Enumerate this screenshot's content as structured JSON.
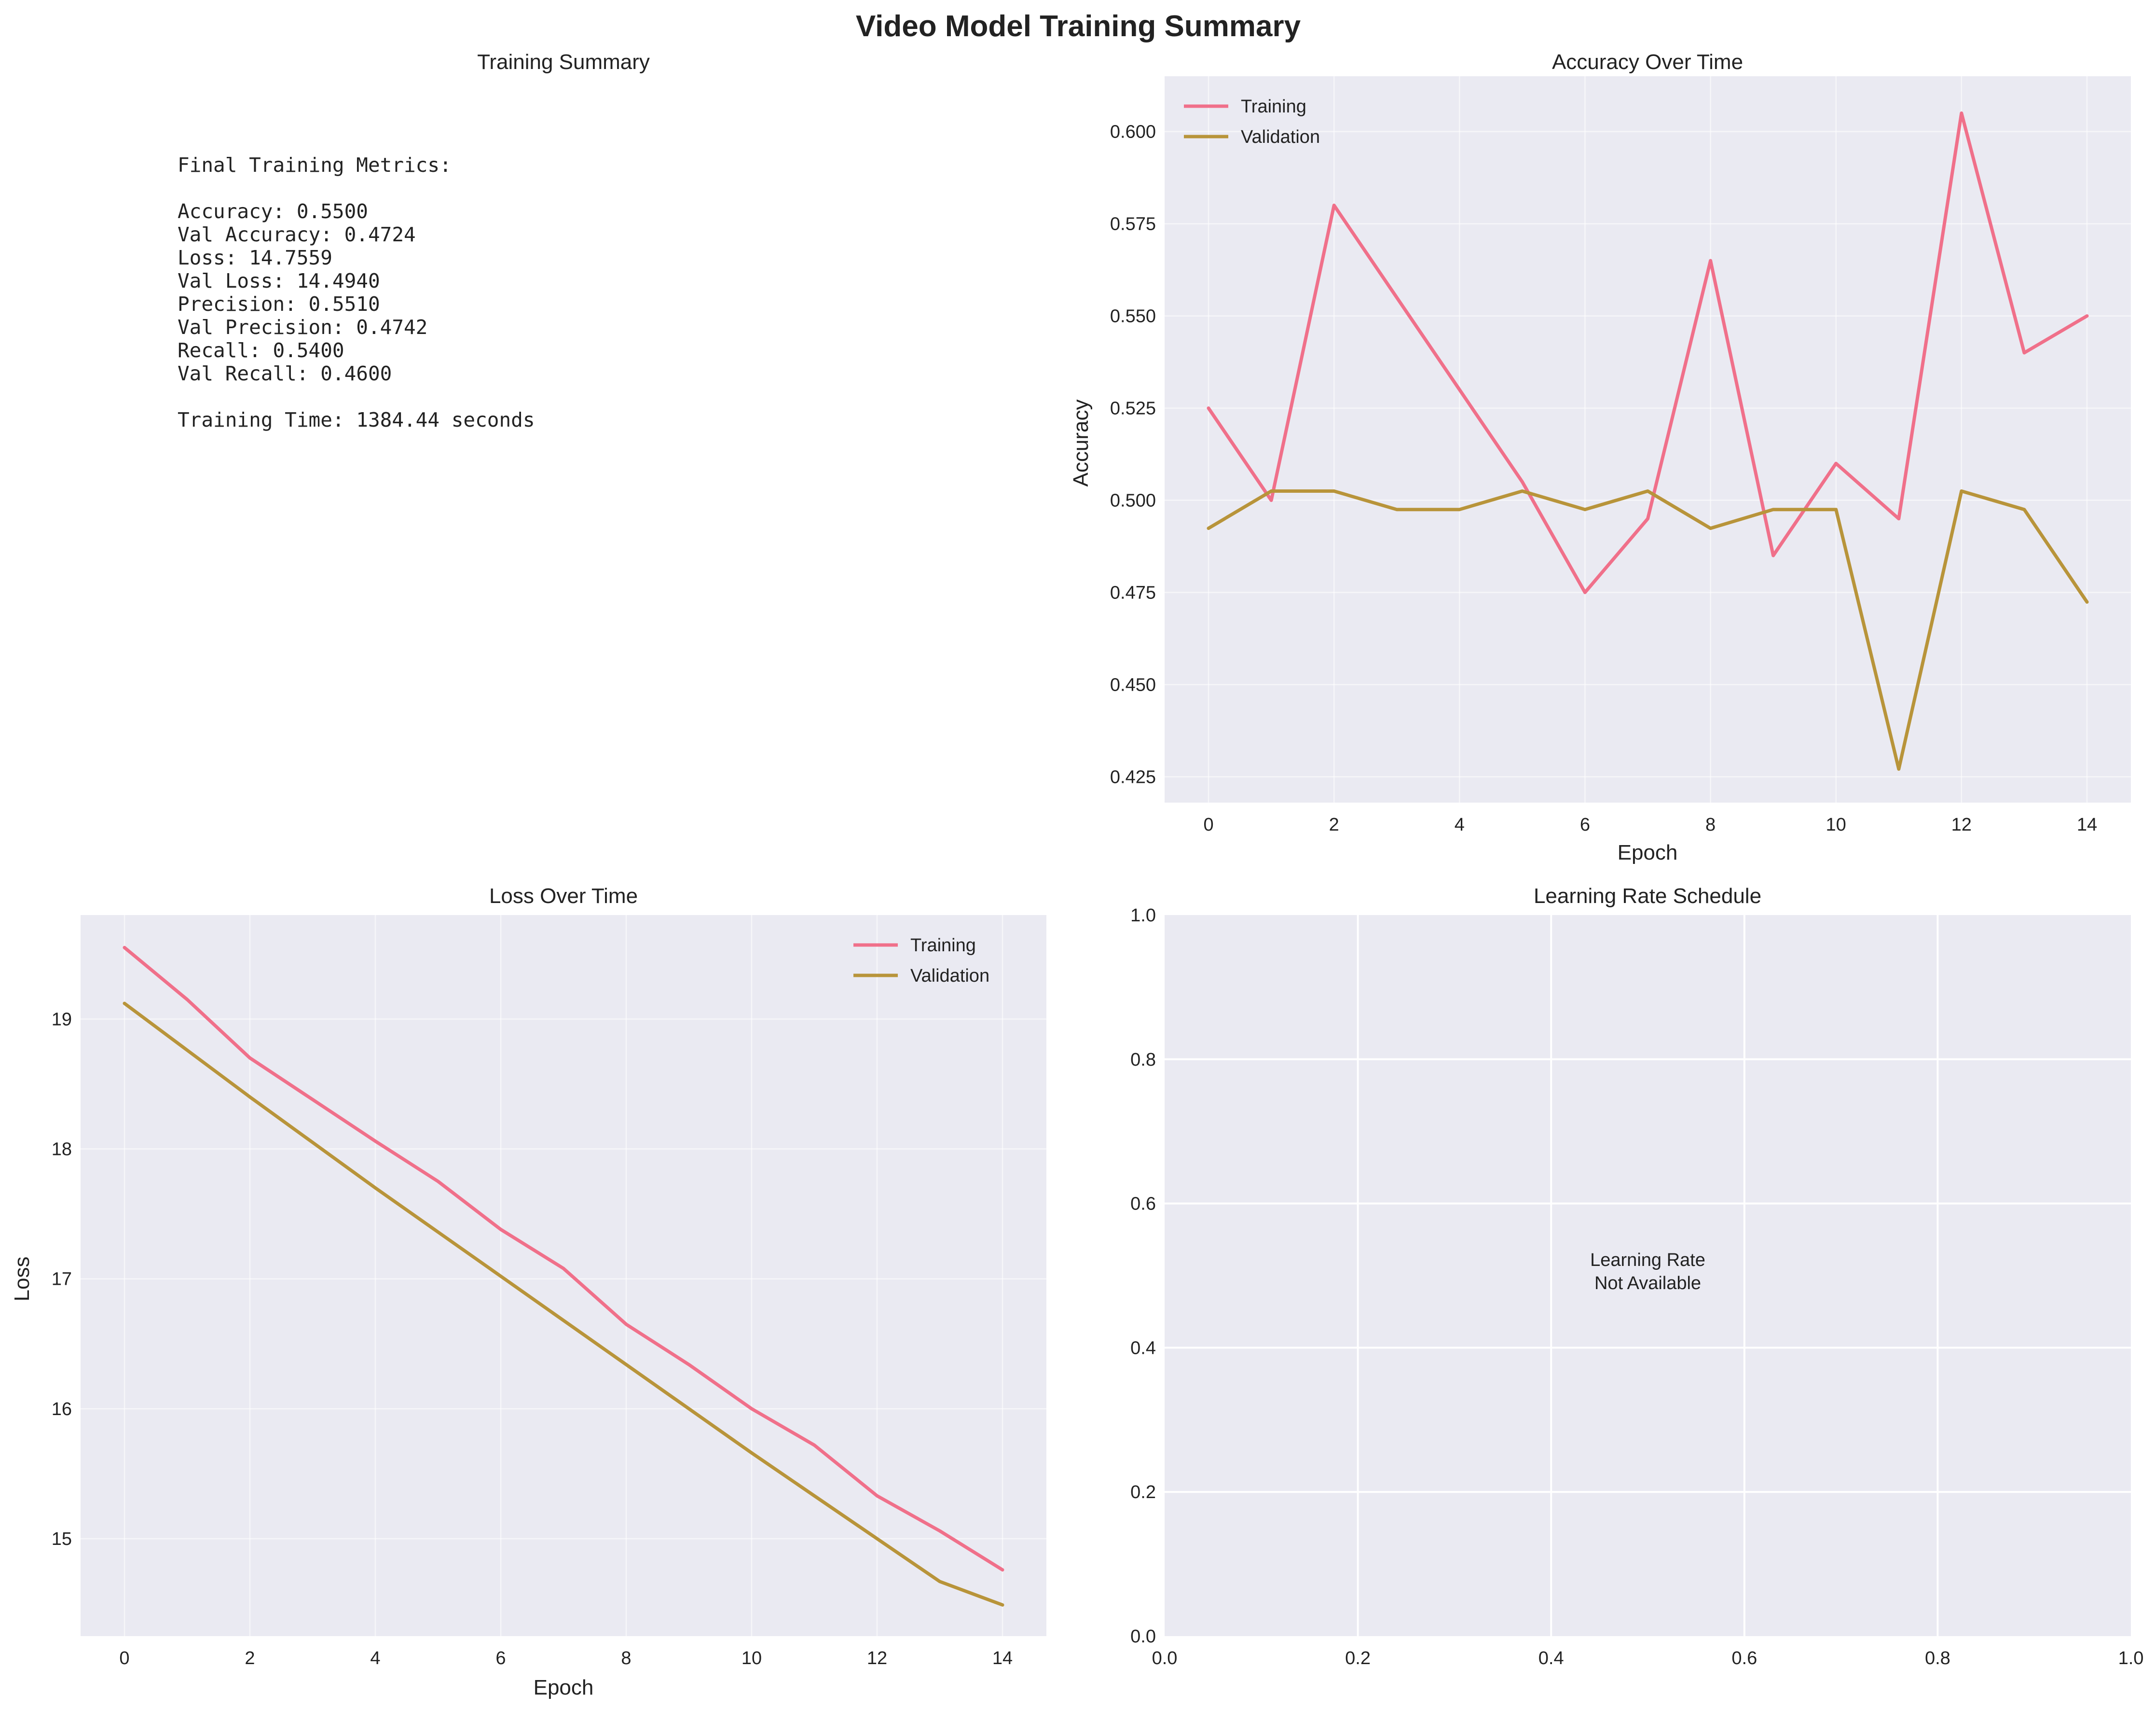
{
  "figure": {
    "title": "Video Model Training Summary"
  },
  "summary_panel": {
    "title": "Training Summary",
    "lines": [
      "Final Training Metrics:",
      "",
      "Accuracy: 0.5500",
      "Val Accuracy: 0.4724",
      "Loss: 14.7559",
      "Val Loss: 14.4940",
      "Precision: 0.5510",
      "Val Precision: 0.4742",
      "Recall: 0.5400",
      "Val Recall: 0.4600",
      "",
      "Training Time: 1384.44 seconds"
    ]
  },
  "colors": {
    "training": "#f0708a",
    "validation": "#b8943a",
    "axes_background": "#eaeaf2",
    "grid": "#ffffff",
    "text": "#222222"
  },
  "chart_data": [
    {
      "id": "accuracy",
      "type": "line",
      "title": "Accuracy Over Time",
      "xlabel": "Epoch",
      "ylabel": "Accuracy",
      "xlim": [
        -0.7,
        14.7
      ],
      "ylim": [
        0.418,
        0.615
      ],
      "xticks": [
        0,
        2,
        4,
        6,
        8,
        10,
        12,
        14
      ],
      "yticks": [
        0.425,
        0.45,
        0.475,
        0.5,
        0.525,
        0.55,
        0.575,
        0.6
      ],
      "ytick_labels": [
        "0.425",
        "0.450",
        "0.475",
        "0.500",
        "0.525",
        "0.550",
        "0.575",
        "0.600"
      ],
      "grid": true,
      "legend": "upper-left",
      "x": [
        0,
        1,
        2,
        3,
        4,
        5,
        6,
        7,
        8,
        9,
        10,
        11,
        12,
        13,
        14
      ],
      "series": [
        {
          "name": "Training",
          "color": "#f0708a",
          "values": [
            0.525,
            0.5,
            0.58,
            0.555,
            0.53,
            0.505,
            0.475,
            0.495,
            0.565,
            0.485,
            0.51,
            0.495,
            0.605,
            0.54,
            0.55
          ]
        },
        {
          "name": "Validation",
          "color": "#b8943a",
          "values": [
            0.4924,
            0.5025,
            0.5025,
            0.4975,
            0.4975,
            0.5025,
            0.4975,
            0.5025,
            0.4924,
            0.4975,
            0.4975,
            0.4271,
            0.5025,
            0.4975,
            0.4724
          ]
        }
      ]
    },
    {
      "id": "loss",
      "type": "line",
      "title": "Loss Over Time",
      "xlabel": "Epoch",
      "ylabel": "Loss",
      "xlim": [
        -0.7,
        14.7
      ],
      "ylim": [
        14.25,
        19.8
      ],
      "xticks": [
        0,
        2,
        4,
        6,
        8,
        10,
        12,
        14
      ],
      "yticks": [
        15,
        16,
        17,
        18,
        19
      ],
      "ytick_labels": [
        "15",
        "16",
        "17",
        "18",
        "19"
      ],
      "grid": true,
      "legend": "upper-right",
      "x": [
        0,
        1,
        2,
        3,
        4,
        5,
        6,
        7,
        8,
        9,
        10,
        11,
        12,
        13,
        14
      ],
      "series": [
        {
          "name": "Training",
          "color": "#f0708a",
          "values": [
            19.55,
            19.15,
            18.7,
            18.38,
            18.06,
            17.75,
            17.38,
            17.08,
            16.65,
            16.34,
            16.0,
            15.72,
            15.33,
            15.06,
            14.76
          ]
        },
        {
          "name": "Validation",
          "color": "#b8943a",
          "values": [
            19.12,
            18.76,
            18.4,
            18.05,
            17.7,
            17.36,
            17.02,
            16.68,
            16.34,
            16.0,
            15.66,
            15.33,
            15.0,
            14.67,
            14.49
          ]
        }
      ]
    },
    {
      "id": "learning_rate",
      "type": "line",
      "title": "Learning Rate Schedule",
      "xlim": [
        0,
        1
      ],
      "ylim": [
        0,
        1
      ],
      "xticks": [
        0,
        0.2,
        0.4,
        0.6,
        0.8,
        1.0
      ],
      "xtick_labels": [
        "0.0",
        "0.2",
        "0.4",
        "0.6",
        "0.8",
        "1.0"
      ],
      "yticks": [
        0,
        0.2,
        0.4,
        0.6,
        0.8,
        1.0
      ],
      "ytick_labels": [
        "0.0",
        "0.2",
        "0.4",
        "0.6",
        "0.8",
        "1.0"
      ],
      "grid": true,
      "annotation_lines": [
        "Learning Rate",
        "Not Available"
      ],
      "series": []
    }
  ]
}
